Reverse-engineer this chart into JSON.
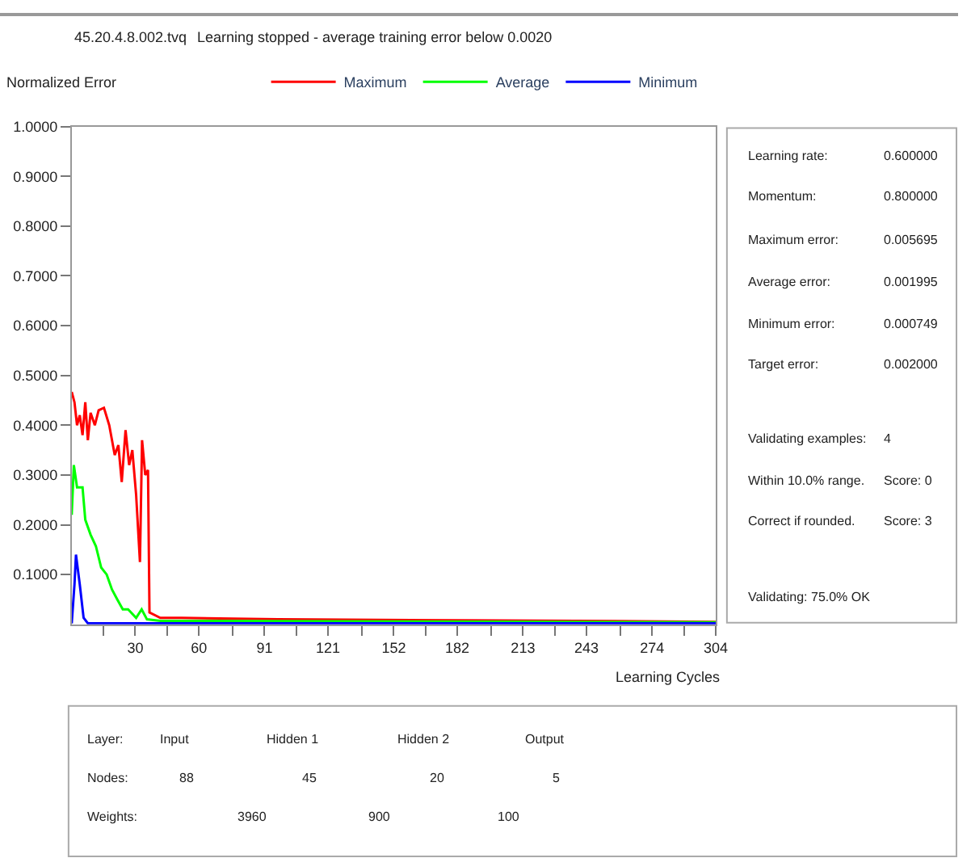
{
  "chart_data": [
    {
      "type": "line",
      "title": "45.20.4.8.002.tvq",
      "subtitle": "Learning stopped - average training error below 0.0020",
      "ylabel": "Normalized Error",
      "xlabel": "Learning Cycles",
      "series": [
        {
          "name": "Maximum",
          "color": "#ff0000",
          "x": [
            0,
            1.3,
            2.5,
            3.8,
            5.1,
            6.4,
            7.6,
            8.9,
            10.9,
            12.7,
            15.2,
            17.7,
            20.3,
            22.0,
            23.6,
            25.4,
            27.1,
            28.6,
            30.4,
            32.2,
            33.2,
            34.7,
            36.0,
            36.7,
            41.8,
            51.9,
            97.5,
            238,
            304
          ],
          "values": [
            0.467,
            0.446,
            0.4,
            0.42,
            0.38,
            0.446,
            0.37,
            0.425,
            0.4,
            0.43,
            0.435,
            0.4,
            0.34,
            0.36,
            0.286,
            0.39,
            0.32,
            0.35,
            0.26,
            0.125,
            0.37,
            0.3,
            0.31,
            0.024,
            0.013,
            0.013,
            0.01,
            0.007,
            0.005
          ]
        },
        {
          "name": "Average",
          "color": "#00ff00",
          "x": [
            0,
            1.0,
            2.5,
            5.1,
            6.4,
            8.9,
            11.4,
            13.9,
            16.5,
            19.0,
            21.5,
            24.1,
            26.6,
            30.4,
            33.0,
            35.5,
            41.8,
            304
          ],
          "values": [
            0.22,
            0.32,
            0.275,
            0.275,
            0.21,
            0.18,
            0.157,
            0.114,
            0.1,
            0.07,
            0.05,
            0.03,
            0.03,
            0.013,
            0.03,
            0.01,
            0.007,
            0.004
          ]
        },
        {
          "name": "Minimum",
          "color": "#0000ff",
          "x": [
            0,
            1.3,
            2.0,
            3.8,
            5.6,
            7.6,
            304
          ],
          "values": [
            0.002,
            0.08,
            0.14,
            0.08,
            0.013,
            0.002,
            0.002
          ]
        }
      ],
      "xlim": [
        0,
        304
      ],
      "xticks": [
        {
          "value": 15,
          "label": null
        },
        30,
        {
          "value": 45,
          "label": null
        },
        60,
        {
          "value": 76,
          "label": null
        },
        91,
        {
          "value": 106,
          "label": null
        },
        121,
        {
          "value": 137,
          "label": null
        },
        152,
        {
          "value": 167,
          "label": null
        },
        182,
        {
          "value": 198,
          "label": null
        },
        213,
        {
          "value": 228,
          "label": null
        },
        243,
        {
          "value": 259,
          "label": null
        },
        274,
        {
          "value": 289,
          "label": null
        },
        304
      ],
      "ylim": [
        0,
        1
      ],
      "yticks": [
        {
          "value": 0.1,
          "label": "0.1000"
        },
        {
          "value": 0.2,
          "label": "0.2000"
        },
        {
          "value": 0.3,
          "label": "0.3000"
        },
        {
          "value": 0.4,
          "label": "0.4000"
        },
        {
          "value": 0.5,
          "label": "0.5000"
        },
        {
          "value": 0.6,
          "label": "0.6000"
        },
        {
          "value": 0.7,
          "label": "0.7000"
        },
        {
          "value": 0.8,
          "label": "0.8000"
        },
        {
          "value": 0.9,
          "label": "0.9000"
        },
        {
          "value": 1.0,
          "label": "1.0000"
        }
      ],
      "legend": "top",
      "marker": "none",
      "line_style": "solid"
    },
    {
      "type": "other",
      "annotations": [
        "Learning rate:",
        "0.600000",
        "Momentum:",
        "0.800000",
        "Maximum error:",
        "0.005695",
        "Average error:",
        "0.001995",
        "Minimum error:",
        "0.000749",
        "Target error:",
        "0.002000",
        "Validating examples:",
        "4",
        "Within 10.0% range.",
        "Score: 0",
        "Correct if rounded.",
        "Score: 3",
        "Validating: 75.0% OK"
      ]
    },
    {
      "type": "other",
      "annotations": [
        "Layer:",
        "Input",
        "Hidden 1",
        "Hidden 2",
        "Output",
        "Nodes:",
        "88",
        "45",
        "20",
        "5",
        "Weights:",
        "3960",
        "900",
        "100"
      ]
    }
  ]
}
